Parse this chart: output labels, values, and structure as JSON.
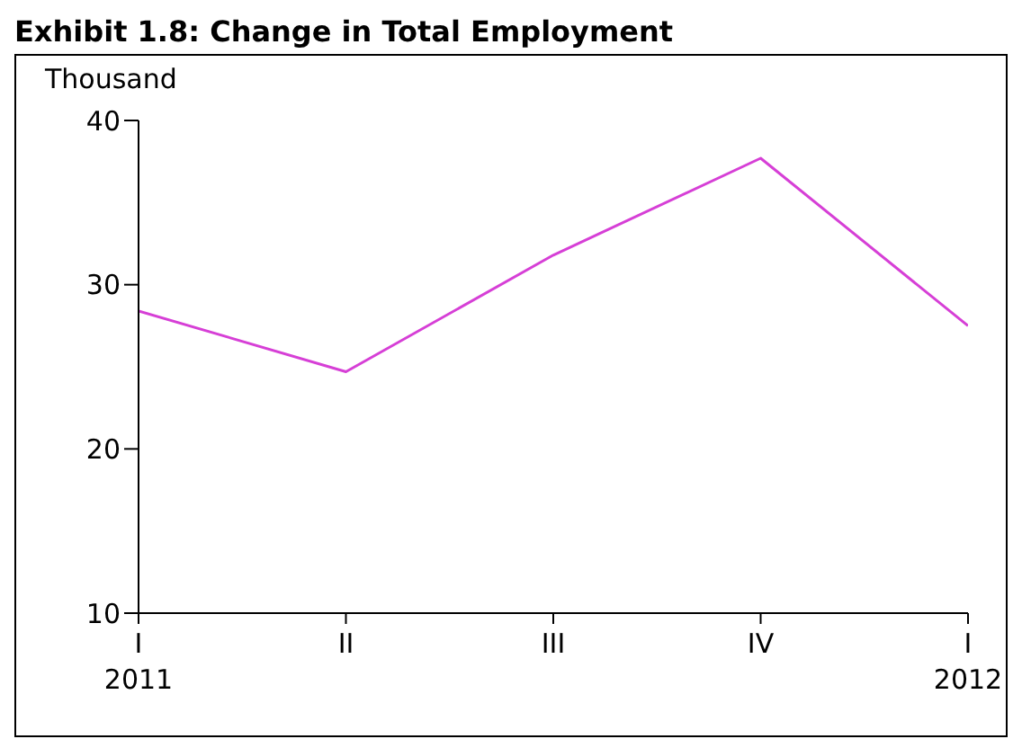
{
  "chart_data": {
    "type": "line",
    "title": "Exhibit 1.8: Change in Total Employment",
    "ylabel": "Thousand",
    "categories": [
      "I\n2011",
      "II",
      "III",
      "IV",
      "I\n2012"
    ],
    "series": [
      {
        "color": "#d63fd6",
        "values": [
          28.4,
          24.7,
          31.8,
          37.7,
          27.5
        ]
      }
    ],
    "ylim": [
      10,
      40
    ],
    "yticks": [
      10,
      20,
      30,
      40
    ],
    "marker": "none",
    "line_style": "solid"
  }
}
